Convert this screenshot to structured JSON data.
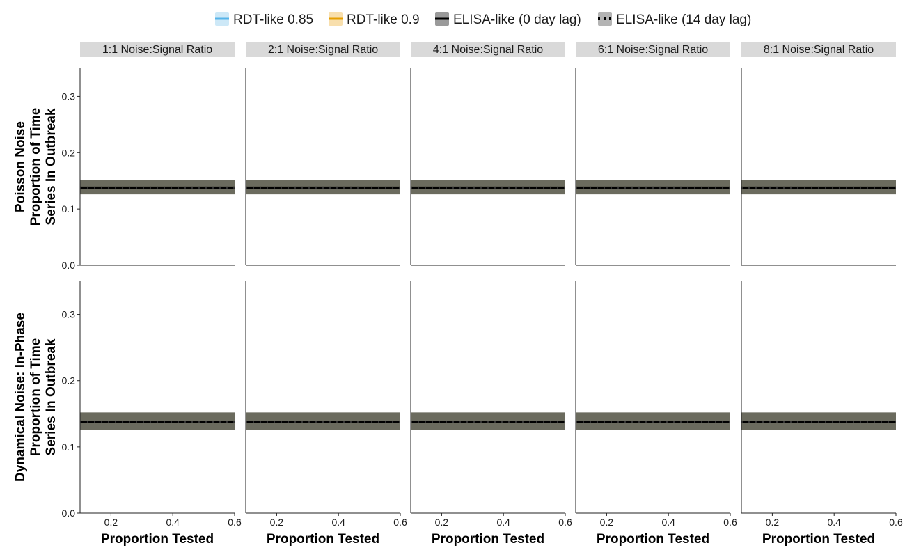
{
  "chart_data": {
    "type": "line",
    "legend": {
      "position": "top",
      "entries": [
        {
          "name": "RDT-like 0.85",
          "line_color": "#56B4E9",
          "fill_color": "#CDE8F7",
          "dash": "solid"
        },
        {
          "name": "RDT-like 0.9",
          "line_color": "#E69F00",
          "fill_color": "#F8DFAD",
          "dash": "solid"
        },
        {
          "name": "ELISA-like (0 day lag)",
          "line_color": "#000000",
          "fill_color": "#9a9a9a",
          "dash": "solid"
        },
        {
          "name": "ELISA-like (14 day lag)",
          "line_color": "#000000",
          "fill_color": "#b4b4b4",
          "dash": "dotted"
        }
      ]
    },
    "column_facets": [
      "1:1 Noise:Signal Ratio",
      "2:1 Noise:Signal Ratio",
      "4:1 Noise:Signal Ratio",
      "6:1 Noise:Signal Ratio",
      "8:1 Noise:Signal Ratio"
    ],
    "row_facets": [
      {
        "label_lines": [
          "Poisson Noise",
          "Proportion of Time",
          "Series In Outbreak"
        ]
      },
      {
        "label_lines": [
          "Dynamical Noise: In-Phase",
          "Proportion of Time",
          "Series In Outbreak"
        ]
      }
    ],
    "xlabel": "Proportion Tested",
    "xlim": [
      0.1,
      0.6
    ],
    "xticks": [
      0.2,
      0.4,
      0.6
    ],
    "xtick_labels": [
      "0.2",
      "0.4",
      "0.6"
    ],
    "ylim": [
      0.0,
      0.35
    ],
    "yticks": [
      0.0,
      0.1,
      0.2,
      0.3
    ],
    "ytick_labels": [
      "0.0",
      "0.1",
      "0.2",
      "0.3"
    ],
    "grid": false,
    "series_per_panel": {
      "x": [
        0.1,
        0.2,
        0.3,
        0.4,
        0.5,
        0.6
      ],
      "mean": 0.138,
      "ribbon_lower": 0.126,
      "ribbon_upper": 0.152
    },
    "band_color": "#6b6b5e",
    "line_color": "#000000"
  }
}
